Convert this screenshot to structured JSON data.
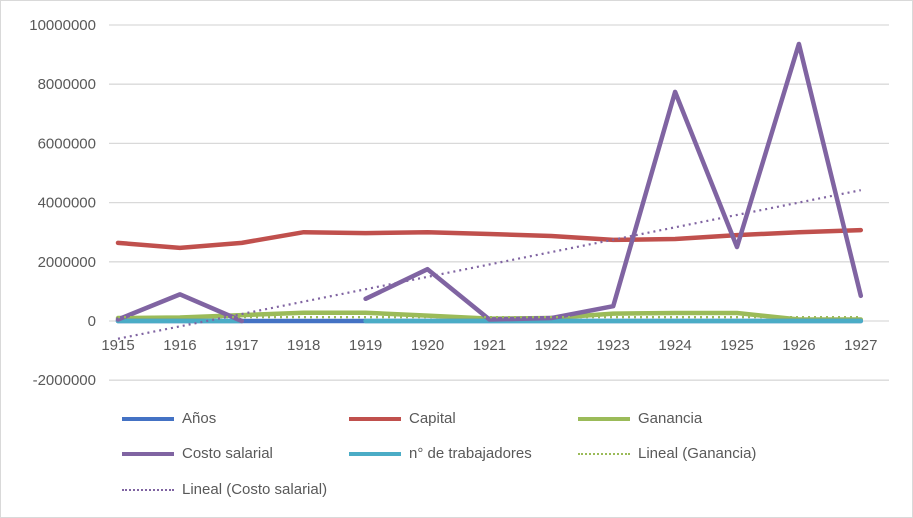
{
  "chart_data": {
    "type": "line",
    "categories": [
      "1915",
      "1916",
      "1917",
      "1918",
      "1919",
      "1920",
      "1921",
      "1922",
      "1923",
      "1924",
      "1925",
      "1926",
      "1927"
    ],
    "ylim": [
      -2000000,
      10000000
    ],
    "yticks": [
      "-2000000",
      "0",
      "2000000",
      "4000000",
      "6000000",
      "8000000",
      "10000000"
    ],
    "grid": true,
    "legend_position": "bottom",
    "series": [
      {
        "name": "Años",
        "color": "#4472c4",
        "values": [
          1915,
          1916,
          1917,
          1918,
          1919,
          1920,
          1921,
          1922,
          1923,
          1924,
          1925,
          1926,
          1927
        ]
      },
      {
        "name": "Capital",
        "color": "#c0504d",
        "values": [
          2640000,
          2470000,
          2640000,
          3000000,
          2970000,
          3000000,
          2940000,
          2870000,
          2740000,
          2770000,
          2900000,
          3000000,
          3070000
        ]
      },
      {
        "name": "Ganancia",
        "color": "#9bbb59",
        "values": [
          100000,
          120000,
          200000,
          280000,
          280000,
          180000,
          80000,
          100000,
          250000,
          270000,
          270000,
          50000,
          50000
        ]
      },
      {
        "name": "Costo salarial",
        "color": "#8064a2",
        "values": [
          50000,
          900000,
          0,
          null,
          750000,
          1750000,
          50000,
          100000,
          500000,
          7740000,
          2500000,
          9360000,
          850000
        ]
      },
      {
        "name": "n° de trabajadores",
        "color": "#4bacc6",
        "values": [
          300,
          320,
          350,
          null,
          380,
          400,
          410,
          420,
          430,
          440,
          450,
          460,
          470
        ]
      }
    ],
    "trendlines": [
      {
        "name": "Lineal (Ganancia)",
        "color": "#9bbb59",
        "from": 130000,
        "to": 130000
      },
      {
        "name": "Lineal (Costo salarial)",
        "color": "#8064a2",
        "from": -600000,
        "to": 4420000
      }
    ]
  }
}
